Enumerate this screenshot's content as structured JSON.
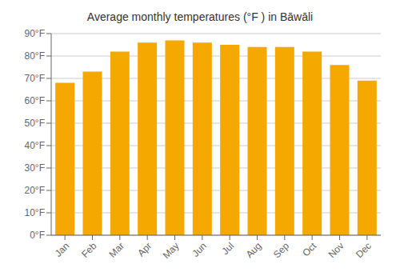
{
  "chart_data": {
    "type": "bar",
    "title": "Average monthly temperatures (°F ) in Bāwāli",
    "categories": [
      "Jan",
      "Feb",
      "Mar",
      "Apr",
      "May",
      "Jun",
      "Jul",
      "Aug",
      "Sep",
      "Oct",
      "Nov",
      "Dec"
    ],
    "values": [
      68,
      73,
      82,
      86,
      87,
      86,
      85,
      84,
      84,
      82,
      76,
      69
    ],
    "color": "#F5A800",
    "ylim": [
      0,
      90
    ],
    "yticks": [
      {
        "value": 0,
        "label": "0°F"
      },
      {
        "value": 10,
        "label": "10°F"
      },
      {
        "value": 20,
        "label": "20°F"
      },
      {
        "value": 30,
        "label": "30°F"
      },
      {
        "value": 40,
        "label": "40°F"
      },
      {
        "value": 50,
        "label": "50°F"
      },
      {
        "value": 60,
        "label": "60°F"
      },
      {
        "value": 70,
        "label": "70°F"
      },
      {
        "value": 80,
        "label": "80°F"
      },
      {
        "value": 90,
        "label": "90°F"
      }
    ],
    "grid": true
  }
}
